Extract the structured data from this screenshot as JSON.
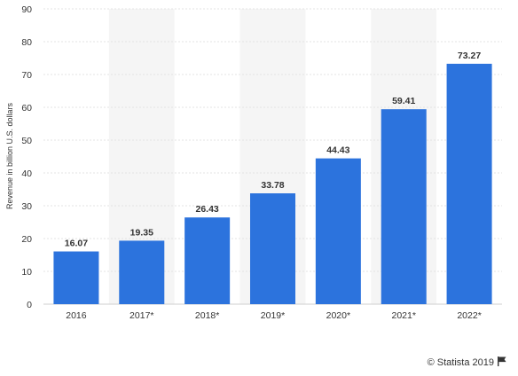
{
  "chart_data": {
    "type": "bar",
    "title": "",
    "xlabel": "",
    "ylabel": "Revenue in billion U.S. dollars",
    "categories": [
      "2016",
      "2017*",
      "2018*",
      "2019*",
      "2020*",
      "2021*",
      "2022*"
    ],
    "values": [
      16.07,
      19.35,
      26.43,
      33.78,
      44.43,
      59.41,
      73.27
    ],
    "value_labels": [
      "16.07",
      "19.35",
      "26.43",
      "33.78",
      "44.43",
      "59.41",
      "73.27"
    ],
    "yticks": [
      "0",
      "10",
      "20",
      "30",
      "40",
      "50",
      "60",
      "70",
      "80",
      "90"
    ],
    "ylim": [
      0,
      90
    ],
    "grid": true,
    "alternating_column_shading": true,
    "bar_color": "#2c73dd",
    "shade_color": "#f5f5f5",
    "grid_color": "#e3e3e3",
    "text_color": "#333333"
  },
  "credit": {
    "text": "© Statista 2019",
    "icon": "flag-icon"
  }
}
